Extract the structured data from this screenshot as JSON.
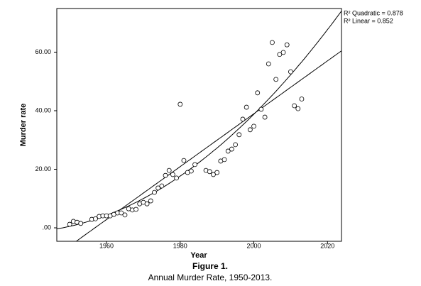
{
  "chart_data": {
    "type": "scatter",
    "title": "Figure 1.",
    "subtitle": "Annual Murder Rate, 1950-2013.",
    "x_label": "Year",
    "y_label": "Murder rate",
    "annotations": [
      "R² Quadratic = 0.878",
      "R² Linear = 0.852"
    ],
    "x": [
      1950,
      1951,
      1952,
      1953,
      1956,
      1957,
      1958,
      1959,
      1960,
      1961,
      1962,
      1963,
      1964,
      1965,
      1966,
      1967,
      1968,
      1969,
      1970,
      1971,
      1972,
      1973,
      1974,
      1975,
      1976,
      1977,
      1978,
      1979,
      1980,
      1981,
      1982,
      1983,
      1984,
      1987,
      1988,
      1989,
      1990,
      1991,
      1992,
      1993,
      1994,
      1995,
      1996,
      1997,
      1998,
      1999,
      2000,
      2001,
      2002,
      2003,
      2004,
      2005,
      2006,
      2007,
      2008,
      2009,
      2010,
      2011,
      2012,
      2013
    ],
    "values": [
      1.2,
      2.2,
      1.9,
      1.5,
      2.9,
      3.1,
      3.9,
      4.1,
      4.1,
      4.1,
      4.6,
      5.1,
      5.1,
      4.4,
      6.5,
      6.1,
      6.3,
      8.2,
      8.7,
      8.2,
      9.2,
      12.1,
      13.6,
      14.3,
      17.9,
      19.6,
      18.2,
      17.0,
      42.2,
      23.0,
      18.9,
      19.4,
      21.6,
      19.6,
      19.2,
      18.2,
      18.9,
      22.8,
      23.3,
      26.2,
      26.9,
      28.4,
      31.8,
      37.1,
      41.2,
      33.5,
      34.7,
      46.1,
      40.5,
      37.8,
      56.0,
      63.3,
      50.7,
      59.2,
      59.9,
      62.5,
      53.3,
      41.7,
      40.7,
      44.0
    ],
    "xlim": [
      1946.5,
      2023.8
    ],
    "ylim": [
      -4.6,
      74.9
    ],
    "xticks": [
      1960,
      1980,
      2000,
      2020
    ],
    "yticks": [
      {
        "value": 0,
        "label": ".00"
      },
      {
        "value": 20,
        "label": "20.00"
      },
      {
        "value": 40,
        "label": "40.00"
      },
      {
        "value": 60,
        "label": "60.00"
      }
    ],
    "fits": [
      "quadratic",
      "linear"
    ]
  }
}
